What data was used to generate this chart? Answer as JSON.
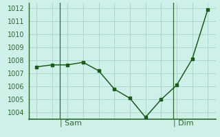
{
  "x": [
    0,
    1,
    2,
    3,
    4,
    5,
    6,
    7,
    8,
    9,
    10,
    11
  ],
  "y": [
    1007.5,
    1007.65,
    1007.65,
    1007.85,
    1007.2,
    1005.8,
    1005.1,
    1003.65,
    1005.0,
    1006.1,
    1008.1,
    1011.9
  ],
  "ylim_min": 1003.5,
  "ylim_max": 1012.4,
  "yticks": [
    1004,
    1005,
    1006,
    1007,
    1008,
    1009,
    1010,
    1011,
    1012
  ],
  "xlim_min": -0.5,
  "xlim_max": 11.5,
  "sam_x": 1.5,
  "dim_x": 8.8,
  "bg_color": "#cef0e8",
  "line_color": "#1a5c1a",
  "grid_color": "#a8d8d0",
  "axis_color": "#2d6a2d",
  "tick_color": "#2d6a2d",
  "label_color": "#2d6a2d",
  "tick_fontsize": 7,
  "label_fontsize": 8
}
